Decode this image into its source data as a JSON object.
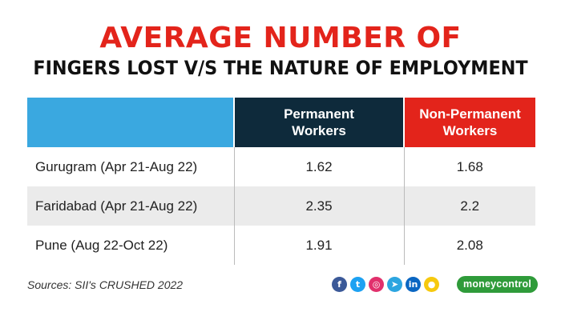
{
  "title_line1": "AVERAGE NUMBER OF",
  "title_line2": "FINGERS LOST V/S THE NATURE OF EMPLOYMENT",
  "chart_data": {
    "type": "table",
    "title": "AVERAGE NUMBER OF FINGERS LOST V/S THE NATURE OF EMPLOYMENT",
    "columns": [
      "",
      "Permanent\nWorkers",
      "Non-Permanent\nWorkers"
    ],
    "rows": [
      {
        "label": "Gurugram (Apr 21-Aug 22)",
        "values": [
          "1.62",
          "1.68"
        ]
      },
      {
        "label": "Faridabad (Apr 21-Aug 22)",
        "values": [
          "2.35",
          "2.2"
        ]
      },
      {
        "label": "Pune (Aug 22-Oct 22)",
        "values": [
          "1.91",
          "2.08"
        ]
      }
    ]
  },
  "sources": "Sources: SII's CRUSHED 2022",
  "social_icons": [
    "facebook-icon",
    "twitter-icon",
    "instagram-icon",
    "telegram-icon",
    "linkedin-icon",
    "koo-icon"
  ],
  "social_glyphs": [
    "f",
    "t",
    "◎",
    "➤",
    "in",
    "●"
  ],
  "brand": "moneycontrol",
  "colors": {
    "title_red": "#e3241b",
    "header_blue": "#3aa8e0",
    "header_navy": "#0e2a3b",
    "header_red": "#e3241b",
    "row_shade": "#ebebeb",
    "brand_green": "#2f9b3a",
    "social": [
      "#3b5998",
      "#1da1f2",
      "#e1306c",
      "#2ca5e0",
      "#0a66c2",
      "#f6c90e"
    ]
  }
}
